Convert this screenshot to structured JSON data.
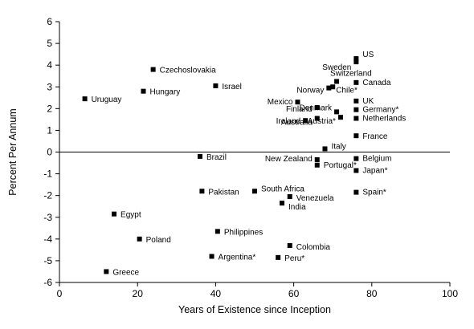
{
  "chart_data": {
    "type": "scatter",
    "title": "",
    "xlabel": "Years of Existence since Inception",
    "ylabel": "Percent Per Annum",
    "xlim": [
      0,
      100
    ],
    "ylim": [
      -6,
      6
    ],
    "x_ticks": [
      "0",
      "20",
      "40",
      "60",
      "80",
      "100"
    ],
    "y_ticks": [
      "-6",
      "-5",
      "-4",
      "-3",
      "-2",
      "-1",
      "0",
      "1",
      "2",
      "3",
      "4",
      "5",
      "6"
    ],
    "grid": false,
    "zero_line": true,
    "marker_color": "#000000",
    "points": [
      {
        "label": "Uruguay",
        "x": 6.5,
        "y": 2.45
      },
      {
        "label": "Czechoslovakia",
        "x": 24,
        "y": 3.8
      },
      {
        "label": "Hungary",
        "x": 21.5,
        "y": 2.8
      },
      {
        "label": "Israel",
        "x": 40,
        "y": 3.05
      },
      {
        "label": "Brazil",
        "x": 36,
        "y": -0.2
      },
      {
        "label": "Pakistan",
        "x": 36.5,
        "y": -1.8
      },
      {
        "label": "South Africa",
        "x": 50,
        "y": -1.8
      },
      {
        "label": "Venezuela",
        "x": 59,
        "y": -2.05
      },
      {
        "label": "India",
        "x": 57,
        "y": -2.35
      },
      {
        "label": "Egypt",
        "x": 14,
        "y": -2.85
      },
      {
        "label": "Poland",
        "x": 20.5,
        "y": -4
      },
      {
        "label": "Philippines",
        "x": 40.5,
        "y": -3.65
      },
      {
        "label": "Colombia",
        "x": 59,
        "y": -4.3
      },
      {
        "label": "Argentina*",
        "x": 39,
        "y": -4.8
      },
      {
        "label": "Peru*",
        "x": 56,
        "y": -4.85
      },
      {
        "label": "Greece",
        "x": 12,
        "y": -5.5
      },
      {
        "label": "US",
        "x": 76,
        "y": 4.3
      },
      {
        "label": "Sweden",
        "x": 76,
        "y": 4.15
      },
      {
        "label": "Switzerland",
        "x": 71,
        "y": 3.25
      },
      {
        "label": "Canada",
        "x": 76,
        "y": 3.2
      },
      {
        "label": "Norway",
        "x": 69,
        "y": 2.95
      },
      {
        "label": "Chile*",
        "x": 70,
        "y": 3.0
      },
      {
        "label": "Mexico",
        "x": 61,
        "y": 2.3
      },
      {
        "label": "UK",
        "x": 76,
        "y": 2.35
      },
      {
        "label": "Finland",
        "x": 66,
        "y": 2.05
      },
      {
        "label": "Denmark",
        "x": 71,
        "y": 1.85
      },
      {
        "label": "Germany*",
        "x": 76,
        "y": 1.95
      },
      {
        "label": "Ireland",
        "x": 63,
        "y": 1.45
      },
      {
        "label": "Australia",
        "x": 66,
        "y": 1.55
      },
      {
        "label": "Austria*",
        "x": 72,
        "y": 1.6
      },
      {
        "label": "Netherlands",
        "x": 76,
        "y": 1.55
      },
      {
        "label": "France",
        "x": 76,
        "y": 0.75
      },
      {
        "label": "Italy",
        "x": 68,
        "y": 0.15
      },
      {
        "label": "New Zealand",
        "x": 66,
        "y": -0.35
      },
      {
        "label": "Portugal*",
        "x": 66,
        "y": -0.6
      },
      {
        "label": "Belgium",
        "x": 76,
        "y": -0.3
      },
      {
        "label": "Japan*",
        "x": 76,
        "y": -0.85
      },
      {
        "label": "Spain*",
        "x": 76,
        "y": -1.85
      }
    ]
  }
}
